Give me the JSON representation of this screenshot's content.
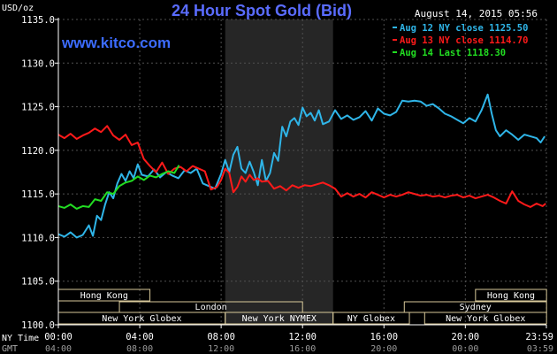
{
  "header": {
    "title": "24 Hour Spot Gold (Bid)",
    "unit": "USD/oz",
    "date": "August 14, 2015 05:56",
    "brand": "www.kitco.com"
  },
  "legend": [
    {
      "label": "Aug 12 NY close 1125.50",
      "color": "#2fb5e8"
    },
    {
      "label": "Aug 13 NY close 1114.70",
      "color": "#ff1a1a"
    },
    {
      "label": "Aug 14 Last 1118.30",
      "color": "#22dd22"
    }
  ],
  "footer": {
    "ny_time_label": "NY Time",
    "gmt_label": "GMT"
  },
  "sessions": [
    {
      "label": "Hong Kong",
      "start": 0,
      "end": 4.5,
      "row": 0
    },
    {
      "label": "Hong Kong",
      "start": 20.5,
      "end": 23.99,
      "row": 0
    },
    {
      "label": "London",
      "start": 3,
      "end": 12,
      "row": 1
    },
    {
      "label": "Sydney",
      "start": 17,
      "end": 23.99,
      "row": 1
    },
    {
      "label": "New York Globex",
      "start": 0,
      "end": 8.2,
      "row": 2
    },
    {
      "label": "New York NYMEX",
      "start": 8.2,
      "end": 13.5,
      "row": 2
    },
    {
      "label": "NY Globex",
      "start": 13.5,
      "end": 17.25,
      "row": 2
    },
    {
      "label": "New York Globex",
      "start": 18,
      "end": 23.99,
      "row": 2
    }
  ],
  "colors": {
    "background": "#000000",
    "grid": "#505050",
    "axis_text": "#ffffff",
    "title": "#5a6cff",
    "brand": "#3c6cff",
    "shade": "#262626",
    "session_border": "#d8c99a",
    "session_text": "#ffffff"
  },
  "chart_data": {
    "type": "line",
    "title": "24 Hour Spot Gold (Bid)",
    "ylabel": "USD/oz",
    "ylim": [
      1100,
      1135
    ],
    "yticks": [
      1100,
      1105,
      1110,
      1115,
      1120,
      1125,
      1130,
      1135
    ],
    "ytick_labels": [
      "1100.0",
      "1105.0",
      "1110.0",
      "1115.0",
      "1120.0",
      "1125.0",
      "1130.0",
      "1135.0"
    ],
    "xlim": [
      0,
      23.983
    ],
    "xticks_ny": [
      {
        "x": 0,
        "label": "00:00"
      },
      {
        "x": 4,
        "label": "04:00"
      },
      {
        "x": 8,
        "label": "08:00"
      },
      {
        "x": 12,
        "label": "12:00"
      },
      {
        "x": 16,
        "label": "16:00"
      },
      {
        "x": 20,
        "label": "20:00"
      },
      {
        "x": 23.983,
        "label": "23:59"
      }
    ],
    "xticks_gmt": [
      {
        "x": 0,
        "label": "04:00"
      },
      {
        "x": 4,
        "label": "08:00"
      },
      {
        "x": 8,
        "label": "12:00"
      },
      {
        "x": 12,
        "label": "16:00"
      },
      {
        "x": 16,
        "label": "20:00"
      },
      {
        "x": 20,
        "label": "00:00"
      },
      {
        "x": 23.983,
        "label": "03:59"
      }
    ],
    "shaded_region": [
      8.2,
      13.5
    ],
    "grid": true,
    "series": [
      {
        "name": "Aug 12 NY close 1125.50",
        "color": "#2fb5e8",
        "x": [
          0,
          0.3,
          0.6,
          0.9,
          1.2,
          1.5,
          1.7,
          1.9,
          2.1,
          2.3,
          2.5,
          2.7,
          2.9,
          3.1,
          3.3,
          3.5,
          3.7,
          3.9,
          4.1,
          4.4,
          4.7,
          5.0,
          5.3,
          5.6,
          5.9,
          6.2,
          6.5,
          6.8,
          7.1,
          7.4,
          7.7,
          8.0,
          8.2,
          8.4,
          8.6,
          8.8,
          9.0,
          9.2,
          9.4,
          9.6,
          9.8,
          10.0,
          10.2,
          10.4,
          10.6,
          10.8,
          11.0,
          11.2,
          11.4,
          11.6,
          11.8,
          12.0,
          12.2,
          12.4,
          12.6,
          12.8,
          13.0,
          13.3,
          13.6,
          13.9,
          14.2,
          14.5,
          14.8,
          15.1,
          15.4,
          15.7,
          16.0,
          16.3,
          16.6,
          16.9,
          17.2,
          17.5,
          17.8,
          18.1,
          18.4,
          18.7,
          19.0,
          19.3,
          19.6,
          19.9,
          20.2,
          20.5,
          20.8,
          21.1,
          21.3,
          21.5,
          21.7,
          22.0,
          22.3,
          22.6,
          22.9,
          23.2,
          23.5,
          23.7,
          23.9
        ],
        "values": [
          1110.4,
          1110.1,
          1110.6,
          1110.0,
          1110.3,
          1111.4,
          1110.2,
          1112.5,
          1112.0,
          1113.8,
          1115.2,
          1114.5,
          1116.2,
          1117.3,
          1116.5,
          1117.6,
          1116.8,
          1118.4,
          1117.2,
          1117.0,
          1117.8,
          1116.9,
          1117.5,
          1117.1,
          1116.8,
          1117.7,
          1117.4,
          1117.9,
          1116.2,
          1115.9,
          1115.6,
          1117.3,
          1118.9,
          1117.5,
          1119.5,
          1120.4,
          1117.9,
          1117.4,
          1118.7,
          1117.5,
          1116.0,
          1118.9,
          1116.5,
          1117.4,
          1119.7,
          1118.8,
          1122.7,
          1121.6,
          1123.3,
          1123.7,
          1122.9,
          1124.9,
          1123.9,
          1124.3,
          1123.4,
          1124.6,
          1123.0,
          1123.3,
          1124.6,
          1123.6,
          1124.0,
          1123.5,
          1123.8,
          1124.5,
          1123.4,
          1124.8,
          1124.2,
          1124.0,
          1124.4,
          1125.7,
          1125.6,
          1125.7,
          1125.6,
          1125.1,
          1125.3,
          1124.8,
          1124.2,
          1123.9,
          1123.5,
          1123.1,
          1123.7,
          1123.3,
          1124.6,
          1126.4,
          1124.2,
          1122.3,
          1121.6,
          1122.3,
          1121.8,
          1121.2,
          1121.8,
          1121.6,
          1121.4,
          1120.9,
          1121.6
        ]
      },
      {
        "name": "Aug 13 NY close 1114.70",
        "color": "#ff1a1a",
        "x": [
          0,
          0.3,
          0.6,
          0.9,
          1.2,
          1.5,
          1.8,
          2.1,
          2.4,
          2.7,
          3.0,
          3.3,
          3.6,
          3.9,
          4.2,
          4.5,
          4.8,
          5.1,
          5.4,
          5.7,
          6.0,
          6.3,
          6.6,
          6.9,
          7.2,
          7.5,
          7.8,
          8.0,
          8.2,
          8.4,
          8.6,
          8.8,
          9.0,
          9.2,
          9.4,
          9.6,
          9.8,
          10.0,
          10.3,
          10.6,
          10.9,
          11.2,
          11.5,
          11.8,
          12.1,
          12.4,
          12.7,
          13.0,
          13.3,
          13.6,
          13.9,
          14.2,
          14.5,
          14.8,
          15.1,
          15.4,
          15.7,
          16.0,
          16.3,
          16.6,
          16.9,
          17.2,
          17.5,
          17.8,
          18.1,
          18.4,
          18.7,
          19.0,
          19.3,
          19.6,
          19.9,
          20.2,
          20.5,
          20.8,
          21.1,
          21.4,
          21.7,
          22.0,
          22.3,
          22.6,
          22.9,
          23.2,
          23.5,
          23.8,
          23.95
        ],
        "values": [
          1121.8,
          1121.4,
          1121.9,
          1121.3,
          1121.7,
          1122.0,
          1122.5,
          1122.1,
          1122.8,
          1121.7,
          1121.2,
          1121.8,
          1120.6,
          1120.9,
          1119.0,
          1118.2,
          1117.5,
          1118.6,
          1117.3,
          1117.9,
          1118.1,
          1117.6,
          1118.2,
          1117.9,
          1117.6,
          1115.5,
          1115.8,
          1116.6,
          1117.9,
          1117.4,
          1115.2,
          1115.8,
          1117.0,
          1116.4,
          1117.2,
          1116.6,
          1116.8,
          1116.4,
          1116.5,
          1115.6,
          1115.9,
          1115.4,
          1116.0,
          1115.7,
          1116.0,
          1115.9,
          1116.1,
          1116.3,
          1116.0,
          1115.6,
          1114.7,
          1115.1,
          1114.7,
          1115.0,
          1114.6,
          1115.2,
          1114.9,
          1114.6,
          1114.9,
          1114.7,
          1114.9,
          1115.2,
          1115.0,
          1114.8,
          1114.9,
          1114.7,
          1114.8,
          1114.6,
          1114.8,
          1114.9,
          1114.6,
          1114.8,
          1114.5,
          1114.7,
          1114.9,
          1114.6,
          1114.2,
          1113.9,
          1115.3,
          1114.2,
          1113.8,
          1113.5,
          1113.9,
          1113.6,
          1113.9
        ]
      },
      {
        "name": "Aug 14 Last 1118.30",
        "color": "#22dd22",
        "x": [
          0,
          0.3,
          0.6,
          0.9,
          1.2,
          1.5,
          1.8,
          2.1,
          2.4,
          2.7,
          3.0,
          3.3,
          3.6,
          3.9,
          4.2,
          4.5,
          4.8,
          5.1,
          5.4,
          5.7,
          5.93
        ],
        "values": [
          1113.6,
          1113.4,
          1113.8,
          1113.3,
          1113.6,
          1113.5,
          1114.4,
          1114.2,
          1115.2,
          1115.0,
          1115.9,
          1116.3,
          1116.5,
          1117.0,
          1116.6,
          1117.1,
          1116.9,
          1117.3,
          1117.6,
          1117.4,
          1118.3
        ]
      }
    ]
  }
}
